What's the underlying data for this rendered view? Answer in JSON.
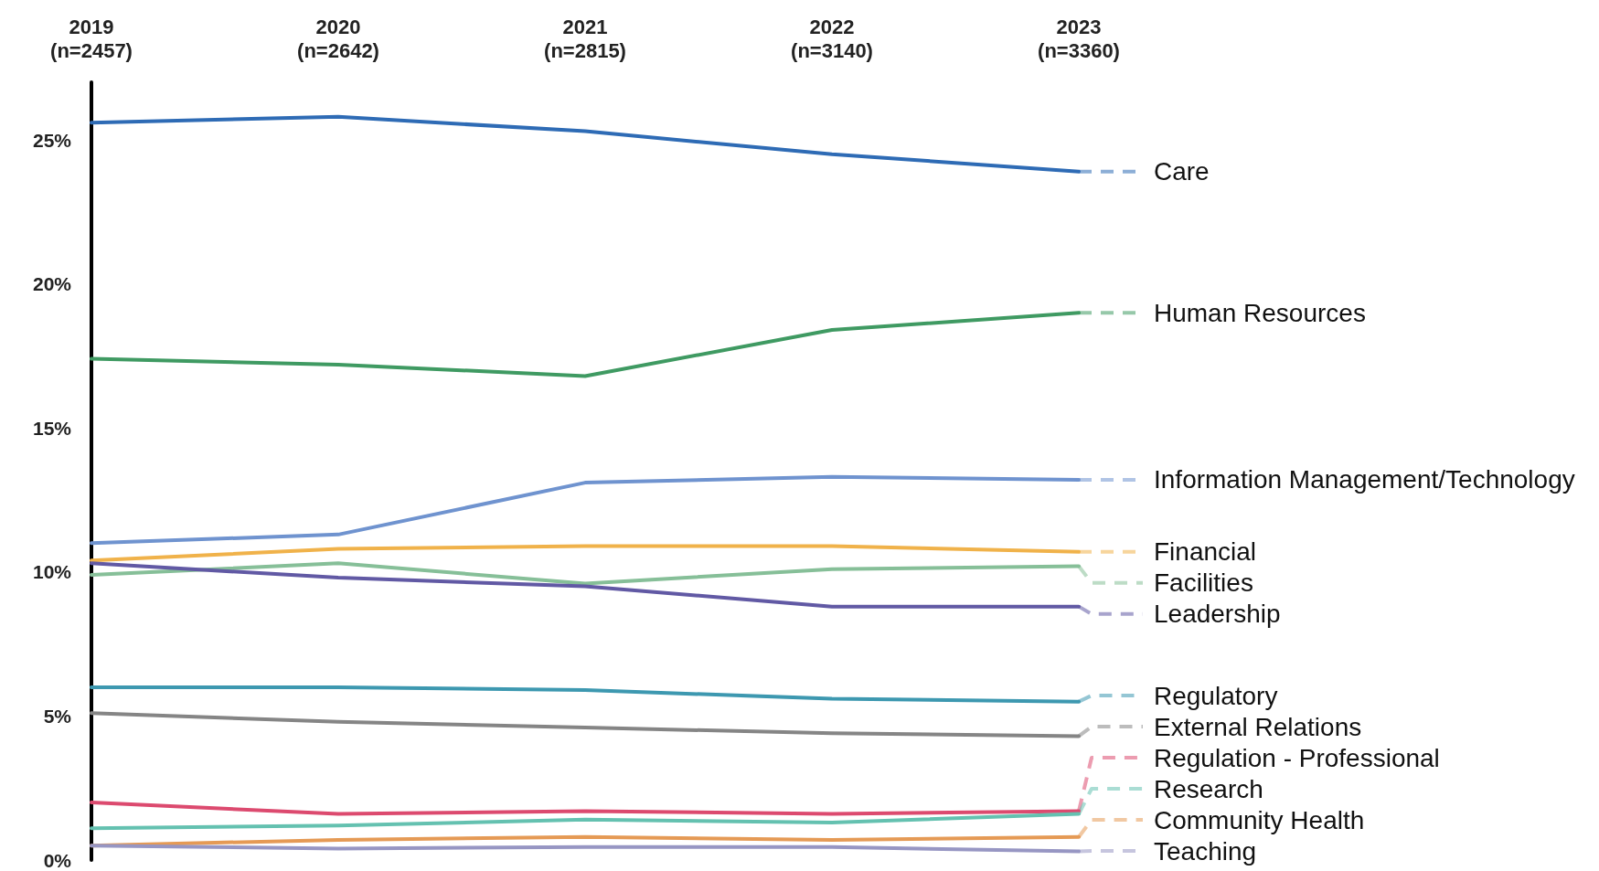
{
  "chart_data": {
    "type": "line",
    "categories": [
      "2019\n(n=2457)",
      "2020\n(n=2642)",
      "2021\n(n=2815)",
      "2022\n(n=3140)",
      "2023\n(n=3360)"
    ],
    "ylim": [
      0,
      27
    ],
    "yticks": [
      {
        "value": 0,
        "label": "0%"
      },
      {
        "value": 5,
        "label": "5%"
      },
      {
        "value": 10,
        "label": "10%"
      },
      {
        "value": 15,
        "label": "15%"
      },
      {
        "value": 20,
        "label": "20%"
      },
      {
        "value": 25,
        "label": "25%"
      }
    ],
    "grid": false,
    "legend": "right",
    "marker": "none",
    "line_style": "solid",
    "series": [
      {
        "name": "Care",
        "color": "#2e6bb5",
        "values": [
          25.6,
          25.8,
          25.3,
          24.5,
          23.9
        ]
      },
      {
        "name": "Human Resources",
        "color": "#3f9a62",
        "values": [
          17.4,
          17.2,
          16.8,
          18.4,
          19.0
        ]
      },
      {
        "name": "Information Management/Technology",
        "color": "#6f93cf",
        "values": [
          11.0,
          11.3,
          13.1,
          13.3,
          13.2
        ]
      },
      {
        "name": "Financial",
        "color": "#f0b24a",
        "values": [
          10.4,
          10.8,
          10.9,
          10.9,
          10.7
        ]
      },
      {
        "name": "Facilities",
        "color": "#86bf98",
        "values": [
          9.9,
          10.3,
          9.6,
          10.1,
          10.2
        ]
      },
      {
        "name": "Leadership",
        "color": "#6159a4",
        "values": [
          10.3,
          9.8,
          9.5,
          8.8,
          8.8
        ]
      },
      {
        "name": "Regulatory",
        "color": "#3d98b0",
        "values": [
          6.0,
          6.0,
          5.9,
          5.6,
          5.5
        ]
      },
      {
        "name": "External Relations",
        "color": "#858585",
        "values": [
          5.1,
          4.8,
          4.6,
          4.4,
          4.3
        ]
      },
      {
        "name": "Regulation - Professional",
        "color": "#dc4a6f",
        "values": [
          2.0,
          1.6,
          1.7,
          1.6,
          1.7
        ]
      },
      {
        "name": "Research",
        "color": "#64c1b0",
        "values": [
          1.1,
          1.2,
          1.4,
          1.3,
          1.6
        ]
      },
      {
        "name": "Community Health",
        "color": "#e59a55",
        "values": [
          0.5,
          0.7,
          0.8,
          0.7,
          0.8
        ]
      },
      {
        "name": "Teaching",
        "color": "#9796c3",
        "values": [
          0.5,
          0.4,
          0.45,
          0.45,
          0.3
        ]
      }
    ]
  }
}
